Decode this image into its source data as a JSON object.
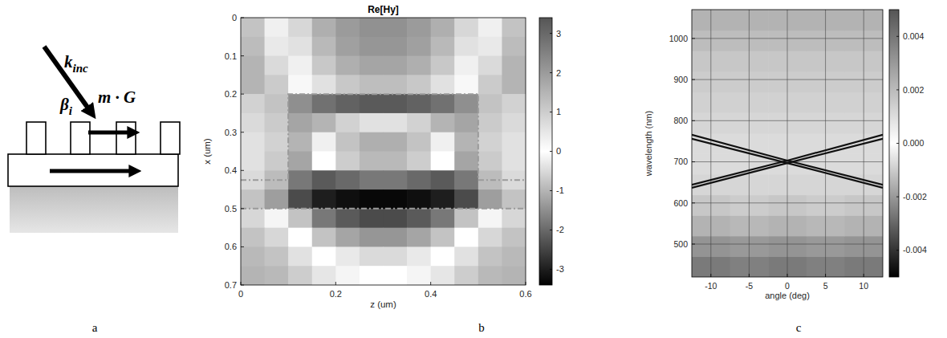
{
  "diagram": {
    "panel_label": "a",
    "labels": [
      {
        "main": "k",
        "sub": "inc"
      },
      {
        "main": "β",
        "sub": "i"
      },
      {
        "main": "m · G"
      }
    ]
  },
  "chart_data": [
    {
      "type": "heatmap",
      "panel_label": "b",
      "title": "Re[Hy]",
      "x_label": "z (um)",
      "y_label": "x (um)",
      "xlim": [
        0,
        0.6
      ],
      "xticks": [
        0,
        0.2,
        0.4,
        0.6
      ],
      "ylim": [
        0.7,
        0
      ],
      "yticks": [
        0,
        0.1,
        0.2,
        0.3,
        0.4,
        0.5,
        0.6,
        0.7
      ],
      "x_edges": [
        0,
        0.05,
        0.1,
        0.15,
        0.2,
        0.25,
        0.3,
        0.35,
        0.4,
        0.45,
        0.5,
        0.55,
        0.6
      ],
      "y_edges": [
        0,
        0.05,
        0.1,
        0.15,
        0.2,
        0.25,
        0.3,
        0.35,
        0.4,
        0.45,
        0.5,
        0.55,
        0.6,
        0.65,
        0.7
      ],
      "cells": [
        [
          -0.8,
          -0.2,
          0.8,
          1.6,
          2.0,
          2.2,
          2.2,
          2.0,
          1.6,
          0.8,
          -0.2,
          -0.8
        ],
        [
          -0.9,
          -0.3,
          0.6,
          1.4,
          1.9,
          2.1,
          2.1,
          1.9,
          1.4,
          0.6,
          -0.3,
          -0.9
        ],
        [
          -1.0,
          -0.5,
          0.3,
          1.1,
          1.6,
          1.8,
          1.8,
          1.6,
          1.1,
          0.3,
          -0.5,
          -1.0
        ],
        [
          -1.0,
          -0.7,
          -0.1,
          0.6,
          1.1,
          1.3,
          1.3,
          1.1,
          0.6,
          -0.1,
          -0.7,
          -1.0
        ],
        [
          -0.6,
          -0.8,
          -1.5,
          -1.9,
          -2.1,
          -2.2,
          -2.2,
          -2.1,
          -1.9,
          -1.5,
          -0.8,
          -0.6
        ],
        [
          -0.5,
          -0.7,
          -1.2,
          -1.0,
          -0.6,
          -0.4,
          -0.4,
          -0.6,
          -1.0,
          -1.2,
          -0.7,
          -0.5
        ],
        [
          -0.4,
          -0.6,
          -1.0,
          0.3,
          1.2,
          1.6,
          1.6,
          1.2,
          0.3,
          -1.0,
          -0.6,
          -0.4
        ],
        [
          -0.4,
          -0.7,
          -1.2,
          0.0,
          1.0,
          1.4,
          1.4,
          1.0,
          0.0,
          -1.2,
          -0.7,
          -0.4
        ],
        [
          -0.5,
          -0.9,
          -1.8,
          -2.2,
          -2.0,
          -1.8,
          -1.8,
          -2.0,
          -2.2,
          -1.8,
          -0.9,
          -0.5
        ],
        [
          -0.8,
          -1.3,
          -2.4,
          -3.0,
          -3.2,
          -3.3,
          -3.3,
          -3.2,
          -3.0,
          -2.4,
          -1.3,
          -0.8
        ],
        [
          0.8,
          0.2,
          -0.8,
          -1.8,
          -2.2,
          -2.4,
          -2.4,
          -2.2,
          -1.8,
          -0.8,
          0.2,
          0.8
        ],
        [
          1.2,
          0.8,
          0.0,
          -0.8,
          -1.2,
          -1.4,
          -1.4,
          -1.2,
          -0.8,
          0.0,
          0.8,
          1.2
        ],
        [
          1.4,
          1.2,
          0.6,
          0.0,
          -0.3,
          -0.5,
          -0.5,
          -0.3,
          0.0,
          0.6,
          1.2,
          1.4
        ],
        [
          1.5,
          1.4,
          1.0,
          0.5,
          0.2,
          0.0,
          0.0,
          0.2,
          0.5,
          1.0,
          1.4,
          1.5
        ]
      ],
      "clim": [
        -3.4,
        3.4
      ],
      "cticks": [
        -3,
        -2,
        -1,
        0,
        1,
        2,
        3
      ],
      "series": [
        {
          "x": [
            0,
            0.1,
            0.1,
            0.5,
            0.5,
            0.6
          ],
          "values": [
            0.425,
            0.425,
            0.2,
            0.2,
            0.425,
            0.425
          ],
          "color": "#9a9a9a",
          "line_style": "dashed"
        },
        {
          "x": [
            0,
            0.6
          ],
          "values": [
            0.5,
            0.5
          ],
          "color": "#9a9a9a",
          "line_style": "dashed"
        }
      ]
    },
    {
      "type": "heatmap",
      "panel_label": "c",
      "x_label": "angle (deg)",
      "y_label": "wavelength (nm)",
      "xlim": [
        -12.5,
        12.5
      ],
      "xticks": [
        -10,
        -5,
        0,
        5,
        10
      ],
      "ylim": [
        420,
        1070
      ],
      "yticks": [
        500,
        600,
        700,
        800,
        900,
        1000
      ],
      "grid": true,
      "x_edges": [
        -12.5,
        -7.5,
        -2.5,
        2.5,
        7.5,
        12.5
      ],
      "y_edges": [
        420,
        470,
        520,
        570,
        620,
        670,
        720,
        770,
        820,
        870,
        920,
        970,
        1020,
        1070
      ],
      "cells": [
        [
          -0.0026,
          -0.0025,
          -0.0026,
          -0.0025,
          -0.0026
        ],
        [
          -0.0021,
          -0.002,
          -0.0021,
          -0.002,
          -0.0021
        ],
        [
          -0.0015,
          -0.0014,
          -0.0015,
          -0.0014,
          -0.0015
        ],
        [
          -0.0011,
          -0.001,
          -0.0011,
          -0.001,
          -0.0011
        ],
        [
          -0.0008,
          -0.0008,
          -0.0008,
          -0.0008,
          -0.0008
        ],
        [
          -0.0007,
          -0.0007,
          -0.0007,
          -0.0007,
          -0.0007
        ],
        [
          -0.0007,
          -0.0007,
          -0.0007,
          -0.0007,
          -0.0007
        ],
        [
          -0.0008,
          -0.0008,
          -0.0008,
          -0.0008,
          -0.0008
        ],
        [
          -0.0009,
          -0.0009,
          -0.0009,
          -0.0009,
          -0.0009
        ],
        [
          -0.001,
          -0.001,
          -0.001,
          -0.001,
          -0.001
        ],
        [
          -0.0011,
          -0.0011,
          -0.0011,
          -0.0011,
          -0.0011
        ],
        [
          -0.0013,
          -0.0013,
          -0.0013,
          -0.0013,
          -0.0013
        ],
        [
          -0.0015,
          -0.0015,
          -0.0015,
          -0.0015,
          -0.0015
        ]
      ],
      "clim": [
        -0.005,
        0.005
      ],
      "cticks": [
        -0.004,
        -0.002,
        {
          "value": 0,
          "label": "0.000"
        },
        0.002,
        0.004
      ],
      "series": [
        {
          "x": [
            -12.5,
            0,
            12.5
          ],
          "values": [
            766,
            703,
            644
          ],
          "color": "#111111"
        },
        {
          "x": [
            -12.5,
            0,
            12.5
          ],
          "values": [
            756,
            697,
            637
          ],
          "color": "#111111"
        },
        {
          "x": [
            -12.5,
            0,
            12.5
          ],
          "values": [
            644,
            703,
            766
          ],
          "color": "#111111"
        },
        {
          "x": [
            -12.5,
            0,
            12.5
          ],
          "values": [
            637,
            697,
            756
          ],
          "color": "#111111"
        }
      ]
    }
  ]
}
